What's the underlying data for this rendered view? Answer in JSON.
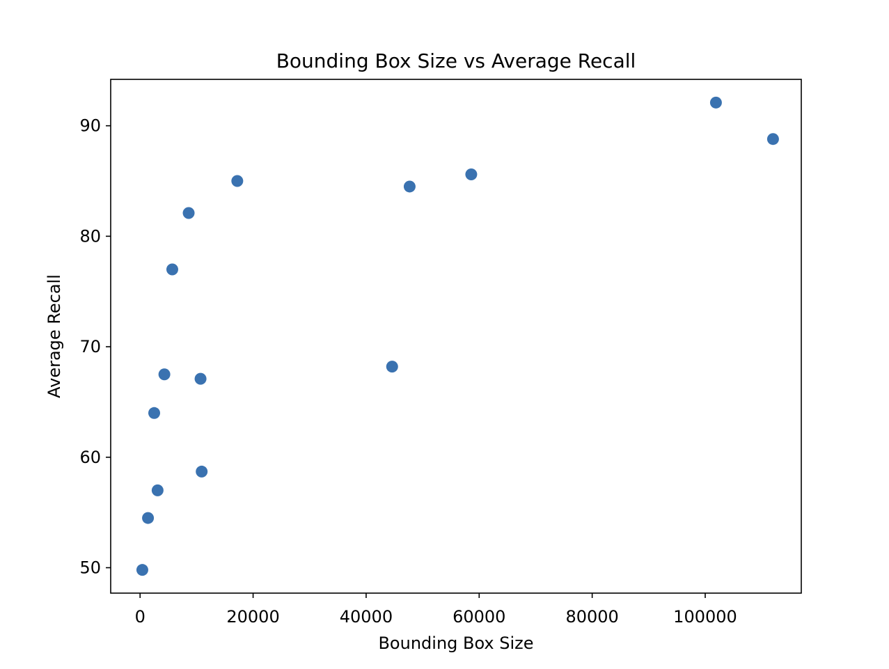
{
  "chart_data": {
    "type": "scatter",
    "title": "Bounding Box Size vs Average Recall",
    "xlabel": "Bounding Box Size",
    "ylabel": "Average Recall",
    "xlim": [
      -5200,
      117000
    ],
    "ylim": [
      47.7,
      94.2
    ],
    "xticks": [
      0,
      20000,
      40000,
      60000,
      80000,
      100000
    ],
    "yticks": [
      50,
      60,
      70,
      80,
      90
    ],
    "xtick_labels": [
      "0",
      "20000",
      "40000",
      "60000",
      "80000",
      "100000"
    ],
    "ytick_labels": [
      "50",
      "60",
      "70",
      "80",
      "90"
    ],
    "grid": false,
    "marker_color": "#3a72b0",
    "points": [
      {
        "x": 400,
        "y": 49.8
      },
      {
        "x": 1400,
        "y": 54.5
      },
      {
        "x": 2500,
        "y": 64.0
      },
      {
        "x": 3100,
        "y": 57.0
      },
      {
        "x": 4300,
        "y": 67.5
      },
      {
        "x": 5700,
        "y": 77.0
      },
      {
        "x": 8600,
        "y": 82.1
      },
      {
        "x": 10700,
        "y": 67.1
      },
      {
        "x": 10900,
        "y": 58.7
      },
      {
        "x": 17200,
        "y": 85.0
      },
      {
        "x": 44600,
        "y": 68.2
      },
      {
        "x": 47700,
        "y": 84.5
      },
      {
        "x": 58600,
        "y": 85.6
      },
      {
        "x": 101900,
        "y": 92.1
      },
      {
        "x": 112000,
        "y": 88.8
      }
    ]
  }
}
